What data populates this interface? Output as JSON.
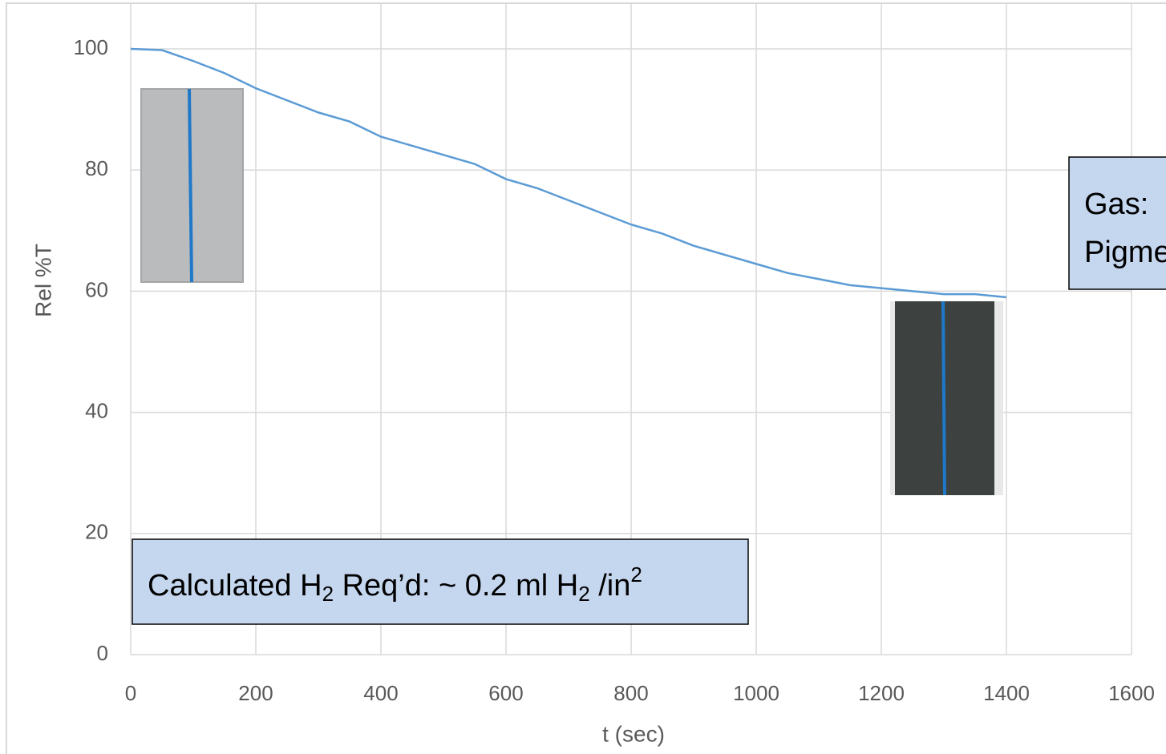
{
  "chart_data": {
    "type": "line",
    "xlabel": "t (sec)",
    "ylabel": "Rel %T",
    "x": [
      0,
      50,
      100,
      150,
      200,
      250,
      300,
      350,
      400,
      450,
      500,
      550,
      600,
      650,
      700,
      750,
      800,
      850,
      900,
      950,
      1000,
      1050,
      1100,
      1150,
      1200,
      1250,
      1300,
      1350,
      1400
    ],
    "series": [
      {
        "color": "#5b9bd5",
        "values": [
          100,
          99.8,
          98,
          96,
          93.5,
          91.5,
          89.5,
          88,
          85.5,
          84,
          82.5,
          81,
          78.5,
          77,
          75,
          73,
          71,
          69.5,
          67.5,
          66,
          64.5,
          63,
          62,
          61,
          60.5,
          60,
          59.5,
          59.5,
          59
        ]
      }
    ],
    "xlim": [
      0,
      1600
    ],
    "xticks": [
      0,
      200,
      400,
      600,
      800,
      1000,
      1200,
      1400,
      1600
    ],
    "ylim": [
      0,
      100
    ],
    "yticks": [
      0,
      20,
      40,
      60,
      80,
      100
    ],
    "grid": true,
    "annotations": [
      {
        "parts": [
          "Calculated H",
          "2",
          " Req’d:  ~ 0.2 ml H",
          "2",
          " /in",
          "2"
        ]
      },
      {
        "lines": [
          "Gas:",
          "Pigme"
        ]
      }
    ]
  }
}
